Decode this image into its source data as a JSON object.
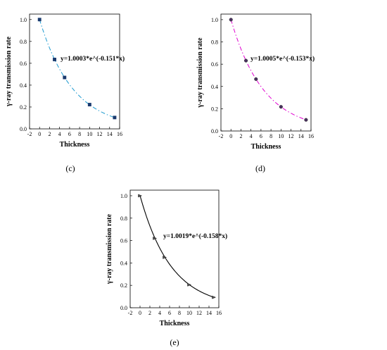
{
  "chart_data": [
    {
      "type": "scatter",
      "panel": "(c)",
      "xlabel": "Thickness",
      "ylabel": "γ-ray transmission rate",
      "equation": "y=1.0003*e^(-0.151*x)",
      "xlim": [
        -2,
        16
      ],
      "ylim": [
        0.0,
        1.0
      ],
      "xticks": [
        -2,
        0,
        2,
        4,
        6,
        8,
        10,
        12,
        14,
        16
      ],
      "yticks": [
        0.0,
        0.2,
        0.4,
        0.6,
        0.8,
        1.0
      ],
      "series": [
        {
          "x": [
            0,
            3,
            5,
            10,
            15
          ],
          "y": [
            1.0,
            0.635,
            0.47,
            0.222,
            0.104
          ],
          "fit": {
            "a": 1.0003,
            "b": -0.151
          },
          "color": "#1f9bd0",
          "marker": "square"
        }
      ]
    },
    {
      "type": "scatter",
      "panel": "(d)",
      "xlabel": "Thickness",
      "ylabel": "γ-ray transmission rate",
      "equation": "y=1.0005*e^(-0.153*x)",
      "xlim": [
        -2,
        16
      ],
      "ylim": [
        0.0,
        1.0
      ],
      "xticks": [
        -2,
        0,
        2,
        4,
        6,
        8,
        10,
        12,
        14,
        16
      ],
      "yticks": [
        0.0,
        0.2,
        0.4,
        0.6,
        0.8,
        1.0
      ],
      "series": [
        {
          "x": [
            0,
            3,
            5,
            10,
            15
          ],
          "y": [
            1.0,
            0.632,
            0.466,
            0.217,
            0.1
          ],
          "fit": {
            "a": 1.0005,
            "b": -0.153
          },
          "color": "#e000d0",
          "marker": "circle"
        }
      ]
    },
    {
      "type": "scatter",
      "panel": "(e)",
      "xlabel": "Thickness",
      "ylabel": "γ-ray transmission rate",
      "equation": "y=1.0019*e^(-0.158*x)",
      "xlim": [
        -2,
        16
      ],
      "ylim": [
        0.0,
        1.0
      ],
      "xticks": [
        -2,
        0,
        2,
        4,
        6,
        8,
        10,
        12,
        14,
        16
      ],
      "yticks": [
        0.0,
        0.2,
        0.4,
        0.6,
        0.8,
        1.0
      ],
      "series": [
        {
          "x": [
            0,
            3,
            5,
            10,
            15
          ],
          "y": [
            1.0,
            0.62,
            0.45,
            0.205,
            0.093
          ],
          "fit": {
            "a": 1.0019,
            "b": -0.158
          },
          "color": "#000000",
          "marker": "triangle"
        }
      ]
    }
  ]
}
